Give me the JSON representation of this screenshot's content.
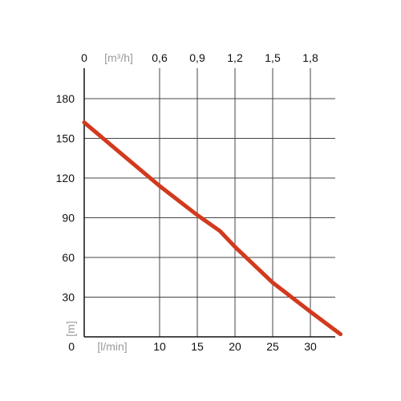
{
  "chart_data": {
    "type": "line",
    "title": "",
    "xlabel": "[l/min]",
    "xlabel_top": "[m³/h]",
    "ylabel": "[m]",
    "x_ticks": [
      "0",
      "10",
      "15",
      "20",
      "25",
      "30"
    ],
    "x_tick_values": [
      0,
      10,
      15,
      20,
      25,
      30
    ],
    "x_top_ticks": [
      "0",
      "0,6",
      "0,9",
      "1,2",
      "1,5",
      "1,8"
    ],
    "x_top_tick_values": [
      0,
      0.6,
      0.9,
      1.2,
      1.5,
      1.8
    ],
    "y_ticks": [
      "0",
      "30",
      "60",
      "90",
      "120",
      "150",
      "180"
    ],
    "y_tick_values": [
      0,
      30,
      60,
      90,
      120,
      150,
      180
    ],
    "xlim": [
      0,
      34
    ],
    "ylim": [
      0,
      185
    ],
    "grid": true,
    "series": [
      {
        "color": "#d23a1e",
        "x": [
          0,
          5,
          10,
          15,
          18,
          20,
          25,
          30,
          34
        ],
        "y": [
          162,
          138,
          114,
          92,
          80,
          68,
          41,
          19,
          2
        ]
      }
    ]
  }
}
